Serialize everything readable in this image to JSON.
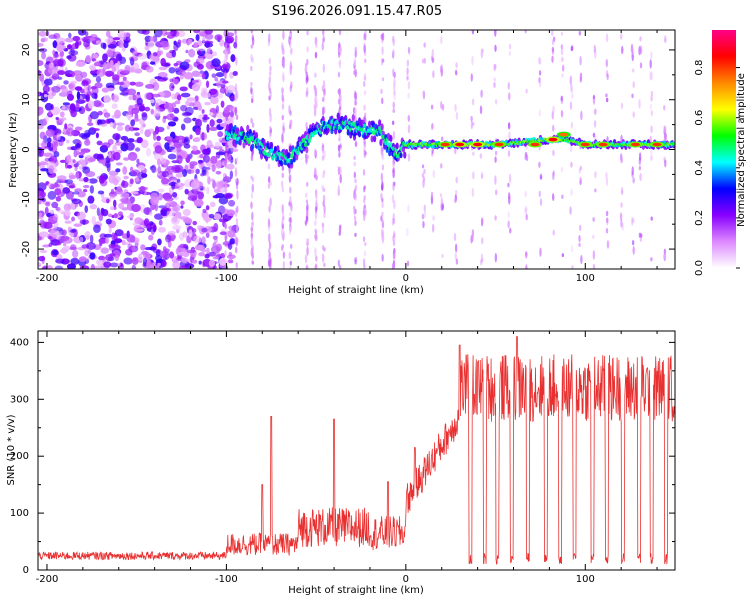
{
  "title": "S196.2026.091.15.47.R05",
  "chart_data": [
    {
      "type": "heatmap",
      "xlabel": "Height of straight line (km)",
      "ylabel": "Frequency (Hz)",
      "xlim": [
        -205,
        150
      ],
      "ylim": [
        -24,
        24
      ],
      "x_ticks": [
        "-200",
        "-100",
        "0",
        "100"
      ],
      "y_ticks": [
        "20",
        "10",
        "0",
        "-10",
        "-20"
      ],
      "colorbar": {
        "label": "Normalized spectral amplitude",
        "range": [
          0.0,
          0.95
        ],
        "ticks": [
          "0.0",
          "0.2",
          "0.4",
          "0.6",
          "0.8"
        ],
        "colors": [
          "#ffffff",
          "#dd88ff",
          "#8800ff",
          "#0000ff",
          "#00ffff",
          "#00ff00",
          "#ffff00",
          "#ff8800",
          "#ff0000",
          "#ff0088"
        ]
      },
      "ridge_frequency_hz": [
        {
          "x": -95,
          "y": 3
        },
        {
          "x": -85,
          "y": 2
        },
        {
          "x": -75,
          "y": -1
        },
        {
          "x": -65,
          "y": -2
        },
        {
          "x": -55,
          "y": 2
        },
        {
          "x": -45,
          "y": 5
        },
        {
          "x": -35,
          "y": 5
        },
        {
          "x": -25,
          "y": 4
        },
        {
          "x": -15,
          "y": 4
        },
        {
          "x": -10,
          "y": 1
        },
        {
          "x": -5,
          "y": -1
        },
        {
          "x": 0,
          "y": 1
        },
        {
          "x": 10,
          "y": 1
        },
        {
          "x": 50,
          "y": 1
        },
        {
          "x": 80,
          "y": 2
        },
        {
          "x": 90,
          "y": 2
        },
        {
          "x": 100,
          "y": 1
        },
        {
          "x": 150,
          "y": 1
        }
      ],
      "peaks": [
        {
          "x": 22,
          "y": 1,
          "amplitude": 0.85
        },
        {
          "x": 30,
          "y": 1,
          "amplitude": 0.9
        },
        {
          "x": 40,
          "y": 1,
          "amplitude": 0.9
        },
        {
          "x": 52,
          "y": 1,
          "amplitude": 0.85
        },
        {
          "x": 72,
          "y": 1,
          "amplitude": 0.85
        },
        {
          "x": 82,
          "y": 2,
          "amplitude": 0.9
        },
        {
          "x": 88,
          "y": 3,
          "amplitude": 0.8
        },
        {
          "x": 100,
          "y": 1,
          "amplitude": 0.85
        },
        {
          "x": 110,
          "y": 1,
          "amplitude": 0.85
        },
        {
          "x": 128,
          "y": 1,
          "amplitude": 0.85
        },
        {
          "x": 140,
          "y": 1,
          "amplitude": 0.85
        }
      ]
    },
    {
      "type": "line",
      "xlabel": "Height of straight line (km)",
      "ylabel": "SNR (10 * v/v)",
      "xlim": [
        -205,
        150
      ],
      "ylim": [
        0,
        420
      ],
      "x_ticks": [
        "-200",
        "-100",
        "0",
        "100"
      ],
      "y_ticks": [
        "0",
        "100",
        "200",
        "300",
        "400"
      ],
      "color": "#e83030",
      "spikes": [
        {
          "x": -90,
          "y": 45
        },
        {
          "x": -80,
          "y": 150
        },
        {
          "x": -75,
          "y": 270
        },
        {
          "x": -40,
          "y": 265
        },
        {
          "x": -10,
          "y": 155
        },
        {
          "x": 5,
          "y": 215
        },
        {
          "x": 30,
          "y": 395
        },
        {
          "x": 62,
          "y": 410
        }
      ],
      "dropouts_x": [
        36,
        44,
        51,
        59,
        68,
        78,
        86,
        94,
        104,
        112,
        121,
        130,
        137,
        145
      ]
    }
  ]
}
